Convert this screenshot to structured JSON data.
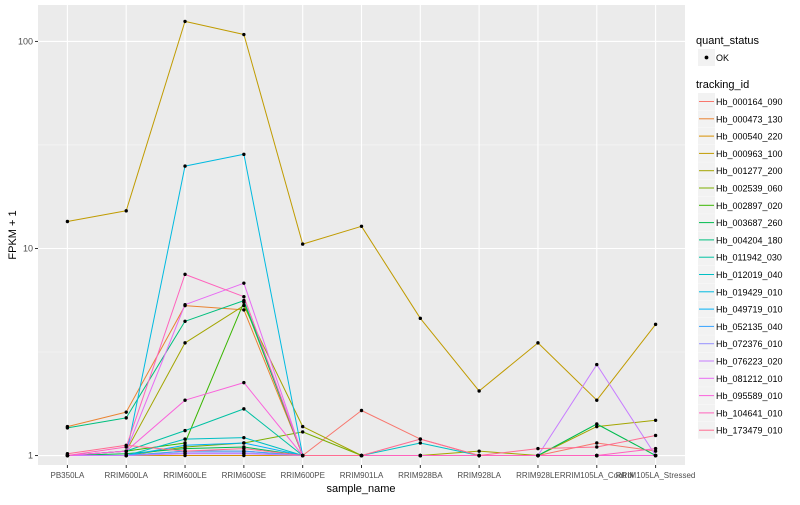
{
  "chart_data": {
    "type": "line",
    "xlabel": "sample_name",
    "ylabel": "FPKM + 1",
    "y_scale": "log10",
    "ylim": [
      0.9,
      150
    ],
    "y_ticks": [
      1,
      10,
      100
    ],
    "y_tick_labels": [
      "1",
      "10",
      "100"
    ],
    "grid": true,
    "legend_position": "right",
    "categories": [
      "PB350LA",
      "RRIM600LA",
      "RRIM600LE",
      "RRIM600SE",
      "RRIM600PE",
      "RRIM901LA",
      "RRIM928BA",
      "RRIM928LA",
      "RRIM928LE",
      "RRIM105LA_Control",
      "RRIM105LA_Stressed"
    ],
    "shape_legend": {
      "title": "quant_status",
      "items": [
        "OK"
      ]
    },
    "color_legend_title": "tracking_id",
    "series": [
      {
        "name": "Hb_000164_090",
        "color": "#F8766D",
        "values": [
          1.0,
          1.0,
          1.05,
          1.05,
          1.0,
          1.65,
          1.2,
          1.0,
          1.0,
          1.15,
          1.05
        ]
      },
      {
        "name": "Hb_000473_130",
        "color": "#EA8331",
        "values": [
          1.38,
          1.62,
          5.3,
          5.05,
          1.0,
          1.0,
          1.0,
          1.0,
          1.0,
          1.0,
          1.0
        ]
      },
      {
        "name": "Hb_000540_220",
        "color": "#D89000",
        "values": [
          1.0,
          1.0,
          1.0,
          1.0,
          1.0,
          1.0,
          1.0,
          1.0,
          1.0,
          1.0,
          1.0
        ]
      },
      {
        "name": "Hb_000963_100",
        "color": "#C09B00",
        "values": [
          13.5,
          15.2,
          125,
          108,
          10.5,
          12.8,
          4.6,
          2.05,
          3.5,
          1.85,
          4.3
        ]
      },
      {
        "name": "Hb_001277_200",
        "color": "#A3A500",
        "values": [
          1.0,
          1.05,
          3.5,
          5.3,
          1.38,
          1.0,
          1.0,
          1.05,
          1.0,
          1.38,
          1.48
        ]
      },
      {
        "name": "Hb_002539_060",
        "color": "#7CAE00",
        "values": [
          1.0,
          1.0,
          1.1,
          1.15,
          1.3,
          1.0,
          1.0,
          1.0,
          1.0,
          1.0,
          1.0
        ]
      },
      {
        "name": "Hb_002897_020",
        "color": "#39B600",
        "values": [
          1.0,
          1.05,
          1.15,
          5.5,
          1.0,
          1.0,
          1.0,
          1.0,
          1.0,
          1.0,
          1.0
        ]
      },
      {
        "name": "Hb_003687_260",
        "color": "#00BB4E",
        "values": [
          1.0,
          1.02,
          1.08,
          1.1,
          1.0,
          1.0,
          1.0,
          1.0,
          1.0,
          1.42,
          1.0
        ]
      },
      {
        "name": "Hb_004204_180",
        "color": "#00BF7D",
        "values": [
          1.36,
          1.52,
          4.45,
          5.6,
          1.0,
          1.0,
          1.0,
          1.0,
          1.0,
          1.0,
          1.0
        ]
      },
      {
        "name": "Hb_011942_030",
        "color": "#00C1A3",
        "values": [
          1.0,
          1.05,
          1.32,
          1.68,
          1.0,
          1.0,
          1.0,
          1.0,
          1.0,
          1.0,
          1.0
        ]
      },
      {
        "name": "Hb_012019_040",
        "color": "#00BFC4",
        "values": [
          1.0,
          1.0,
          1.2,
          1.22,
          1.0,
          1.0,
          1.15,
          1.0,
          1.0,
          1.0,
          1.0
        ]
      },
      {
        "name": "Hb_019429_010",
        "color": "#00BAE0",
        "values": [
          1.0,
          1.0,
          25,
          28.5,
          1.0,
          1.0,
          1.0,
          1.0,
          1.0,
          1.0,
          1.0
        ]
      },
      {
        "name": "Hb_049719_010",
        "color": "#00B0F6",
        "values": [
          1.0,
          1.0,
          1.12,
          1.15,
          1.0,
          1.0,
          1.0,
          1.0,
          1.0,
          1.0,
          1.0
        ]
      },
      {
        "name": "Hb_052135_040",
        "color": "#35A2FF",
        "values": [
          1.0,
          1.0,
          1.05,
          1.05,
          1.0,
          1.0,
          1.0,
          1.0,
          1.0,
          1.0,
          1.0
        ]
      },
      {
        "name": "Hb_072376_010",
        "color": "#9590FF",
        "values": [
          1.0,
          1.0,
          1.03,
          1.03,
          1.0,
          1.0,
          1.0,
          1.0,
          1.0,
          1.0,
          1.0
        ]
      },
      {
        "name": "Hb_076223_020",
        "color": "#C77CFF",
        "values": [
          1.0,
          1.0,
          1.02,
          1.02,
          1.0,
          1.0,
          1.0,
          1.0,
          1.0,
          2.75,
          1.0
        ]
      },
      {
        "name": "Hb_081212_010",
        "color": "#E76BF3",
        "values": [
          1.0,
          1.05,
          5.35,
          6.8,
          1.0,
          1.0,
          1.0,
          1.0,
          1.0,
          1.0,
          1.0
        ]
      },
      {
        "name": "Hb_095589_010",
        "color": "#FA62DB",
        "values": [
          1.0,
          1.05,
          1.85,
          2.25,
          1.0,
          1.0,
          1.0,
          1.0,
          1.0,
          1.0,
          1.0
        ]
      },
      {
        "name": "Hb_104641_010",
        "color": "#FF62BC",
        "values": [
          1.0,
          1.1,
          7.5,
          5.85,
          1.0,
          1.0,
          1.0,
          1.0,
          1.0,
          1.0,
          1.08
        ]
      },
      {
        "name": "Hb_173479_010",
        "color": "#FF6C91",
        "values": [
          1.02,
          1.12,
          1.05,
          1.08,
          1.0,
          1.0,
          1.2,
          1.0,
          1.08,
          1.1,
          1.25
        ]
      }
    ]
  }
}
